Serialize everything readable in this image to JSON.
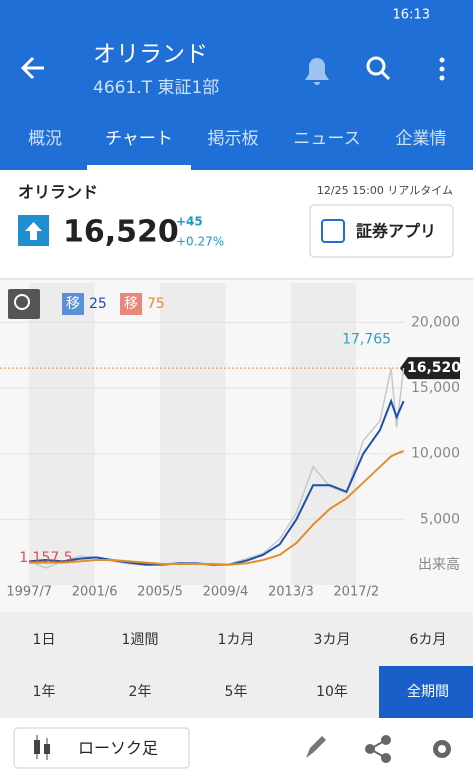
{
  "status_bar": {
    "time": "16:13"
  },
  "header": {
    "title": "オリランド",
    "subtitle": "4661.T 東証1部"
  },
  "tabs": [
    "概況",
    "チャート",
    "掲示板",
    "ニュース",
    "企業情"
  ],
  "selected_tab": 1,
  "quote": {
    "name": "オリランド",
    "timestamp": "12/25 15:00 リアルタイム",
    "price": "16,520",
    "change": "+45",
    "change_percent": "+0.27%",
    "app_button": "証券アプリ"
  },
  "chart_data": {
    "type": "line",
    "x": [
      "1997/7",
      "1998/7",
      "1999/7",
      "2000/7",
      "2001/7",
      "2002/7",
      "2003/7",
      "2004/7",
      "2005/7",
      "2006/7",
      "2007/7",
      "2008/7",
      "2009/7",
      "2010/7",
      "2011/7",
      "2012/7",
      "2013/7",
      "2014/7",
      "2015/7",
      "2016/7",
      "2017/7",
      "2018/7",
      "2019/3",
      "2019/7",
      "2019/12"
    ],
    "xlim": [
      "1995/10",
      "2020/1"
    ],
    "xticks": [
      "1997/7",
      "2001/6",
      "2005/5",
      "2009/4",
      "2013/3",
      "2017/2"
    ],
    "ylim": [
      0,
      23000
    ],
    "yticks": [
      {
        "value": 5000,
        "label": "5,000"
      },
      {
        "value": 10000,
        "label": "10,000"
      },
      {
        "value": 15000,
        "label": "15,000"
      },
      {
        "value": 20000,
        "label": "20,000"
      }
    ],
    "volume_label": "出来高",
    "series": [
      {
        "color": "#c8c8c8",
        "values": [
          1800,
          1300,
          1800,
          2200,
          2100,
          1800,
          1600,
          1500,
          1600,
          1700,
          1600,
          1500,
          1600,
          2000,
          2400,
          3500,
          5500,
          9000,
          7500,
          7000,
          11000,
          12500,
          16500,
          12000,
          16520
        ]
      },
      {
        "name": "移",
        "period": 25,
        "color": "#1f4fa8",
        "badge_color": "#5b8fd6",
        "values": [
          1800,
          1900,
          1800,
          2000,
          2100,
          1900,
          1700,
          1550,
          1550,
          1650,
          1650,
          1550,
          1550,
          1850,
          2300,
          3100,
          5000,
          7600,
          7600,
          7100,
          10000,
          11800,
          14000,
          12800,
          14000
        ]
      },
      {
        "name": "移",
        "period": 75,
        "color": "#e0902a",
        "badge_color": "#e8877a",
        "values": [
          1700,
          1700,
          1700,
          1800,
          1900,
          1900,
          1800,
          1700,
          1600,
          1600,
          1600,
          1600,
          1550,
          1650,
          1900,
          2300,
          3200,
          4600,
          5800,
          6600,
          7800,
          9000,
          9800,
          10000,
          10200
        ]
      }
    ],
    "annotations": [
      {
        "value": 17765,
        "label": "17,765",
        "x": "2019/3",
        "color": "#2aa0c8"
      },
      {
        "value": 1157.5,
        "label": "1,157.5",
        "x": "1998/7",
        "color": "#d9534f"
      }
    ],
    "last_price": {
      "value": 16520,
      "label": "16,520"
    }
  },
  "periods": [
    [
      "1日",
      "1週間",
      "1カ月",
      "3カ月",
      "6カ月"
    ],
    [
      "1年",
      "2年",
      "5年",
      "10年",
      "全期間"
    ]
  ],
  "selected_period": [
    1,
    4
  ],
  "footer": {
    "chart_style": "ローソク足"
  }
}
